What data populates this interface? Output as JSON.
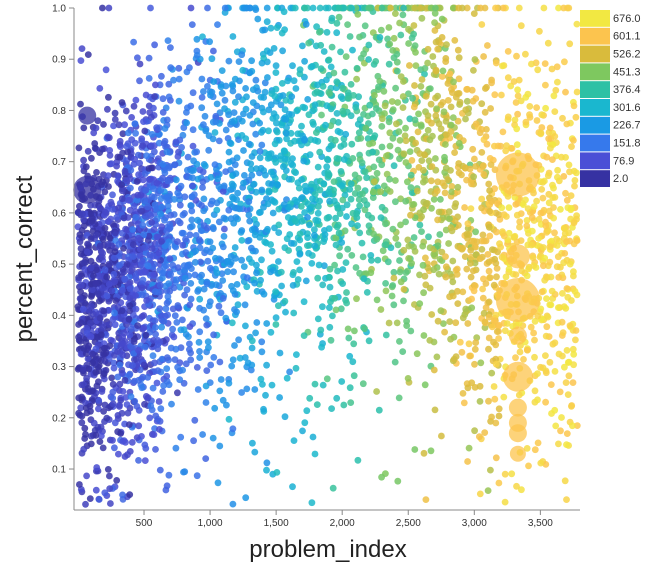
{
  "chart_data": {
    "type": "scatter",
    "title": "",
    "xlabel": "problem_index",
    "ylabel": "percent_correct",
    "xlim": [
      -30,
      3800
    ],
    "ylim": [
      0.02,
      1.0
    ],
    "x_ticks": [
      500,
      1000,
      1500,
      2000,
      2500,
      3000,
      3500
    ],
    "x_tick_labels": [
      "500",
      "1,000",
      "1,500",
      "2,000",
      "2,500",
      "3,000",
      "3,500"
    ],
    "y_ticks": [
      0.1,
      0.2,
      0.3,
      0.4,
      0.5,
      0.6,
      0.7,
      0.8,
      0.9,
      1.0
    ],
    "y_tick_labels": [
      "0.1",
      "0.2",
      "0.3",
      "0.4",
      "0.5",
      "0.6",
      "0.7",
      "0.8",
      "0.9",
      "1.0"
    ],
    "grid": false,
    "legend": {
      "placement": "top-right",
      "entries": [
        {
          "label": "676.0",
          "color": "#f2e842"
        },
        {
          "label": "601.1",
          "color": "#fcc44e"
        },
        {
          "label": "526.2",
          "color": "#d9bb3c"
        },
        {
          "label": "451.3",
          "color": "#7ec85f"
        },
        {
          "label": "376.4",
          "color": "#2ec1a5"
        },
        {
          "label": "301.6",
          "color": "#1ab7cf"
        },
        {
          "label": "226.7",
          "color": "#1a9ae4"
        },
        {
          "label": "151.8",
          "color": "#3679ec"
        },
        {
          "label": "76.9",
          "color": "#4a4fd6"
        },
        {
          "label": "2.0",
          "color": "#3632a2"
        }
      ]
    },
    "color_stops": [
      "#3632a2",
      "#4a4fd6",
      "#3679ec",
      "#1a9ae4",
      "#1ab7cf",
      "#2ec1a5",
      "#7ec85f",
      "#d9bb3c",
      "#fcc44e",
      "#f2e842"
    ],
    "points_note_count": 4000,
    "large_points": [
      {
        "x": 70,
        "y": 0.79,
        "size": 9,
        "color_value": 2
      },
      {
        "x": 70,
        "y": 0.645,
        "size": 14,
        "color_value": 2
      },
      {
        "x": 3330,
        "y": 0.675,
        "size": 22,
        "color_value": 601.1
      },
      {
        "x": 3330,
        "y": 0.515,
        "size": 12,
        "color_value": 601.1
      },
      {
        "x": 3330,
        "y": 0.43,
        "size": 22,
        "color_value": 601.1
      },
      {
        "x": 3330,
        "y": 0.36,
        "size": 9,
        "color_value": 601.1
      },
      {
        "x": 3330,
        "y": 0.28,
        "size": 15,
        "color_value": 601.1
      },
      {
        "x": 3330,
        "y": 0.22,
        "size": 9,
        "color_value": 601.1
      },
      {
        "x": 3330,
        "y": 0.19,
        "size": 9,
        "color_value": 601.1
      },
      {
        "x": 3330,
        "y": 0.17,
        "size": 9,
        "color_value": 601.1
      },
      {
        "x": 3330,
        "y": 0.13,
        "size": 8,
        "color_value": 601.1
      }
    ]
  }
}
